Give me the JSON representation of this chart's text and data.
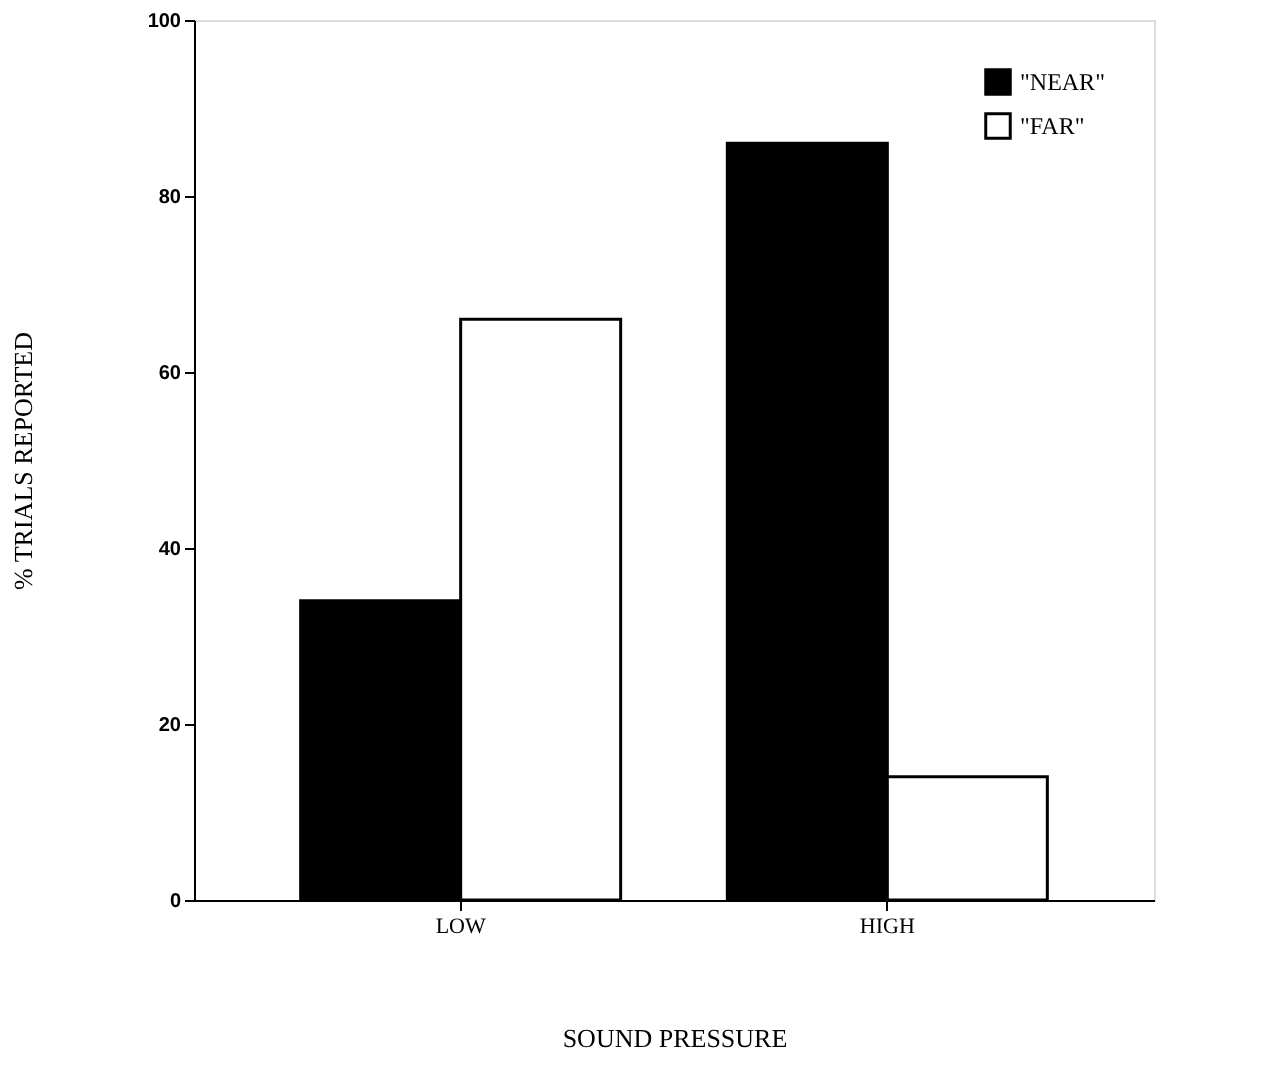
{
  "chart_data": {
    "type": "bar",
    "xlabel": "SOUND    PRESSURE",
    "ylabel": "% TRIALS REPORTED",
    "categories": [
      "LOW",
      "HIGH"
    ],
    "series": [
      {
        "name": "\"NEAR\"",
        "color": "#000000",
        "values": [
          34,
          86
        ]
      },
      {
        "name": "\"FAR\"",
        "color": "#ffffff",
        "values": [
          66,
          14
        ]
      }
    ],
    "ylim": [
      0,
      100
    ],
    "yticks": [
      0,
      20,
      40,
      60,
      80,
      100
    ],
    "grid": false,
    "legend": "top right"
  }
}
